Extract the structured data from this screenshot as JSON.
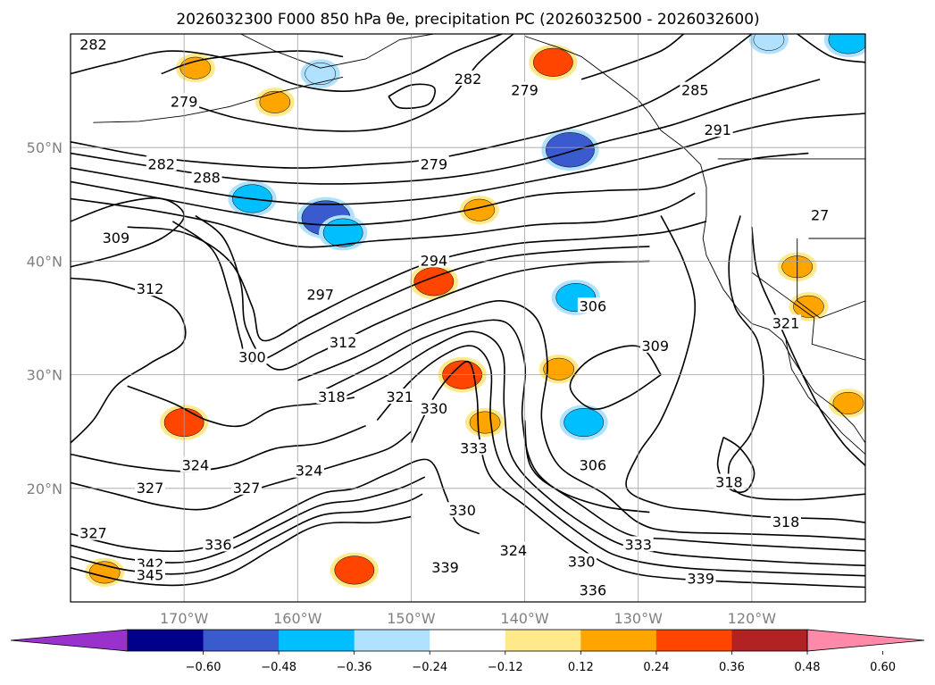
{
  "chart_data": {
    "type": "contour-map",
    "title": "2026032300 F000 850 hPa θe, precipitation PC (2026032500 - 2026032600)",
    "map": {
      "lon_range": [
        -180,
        -110
      ],
      "lat_range": [
        10,
        60
      ],
      "lon_ticks": [
        {
          "value": -170,
          "label": "170°W"
        },
        {
          "value": -160,
          "label": "160°W"
        },
        {
          "value": -150,
          "label": "150°W"
        },
        {
          "value": -140,
          "label": "140°W"
        },
        {
          "value": -130,
          "label": "130°W"
        },
        {
          "value": -120,
          "label": "120°W"
        }
      ],
      "lat_ticks": [
        {
          "value": 50,
          "label": "50°N"
        },
        {
          "value": 40,
          "label": "40°N"
        },
        {
          "value": 30,
          "label": "30°N"
        },
        {
          "value": 20,
          "label": "20°N"
        }
      ],
      "grid": true
    },
    "colorbar": {
      "ticks": [
        "−0.60",
        "−0.48",
        "−0.36",
        "−0.24",
        "−0.12",
        "0.12",
        "0.24",
        "0.36",
        "0.48",
        "0.60"
      ],
      "colors": [
        "#9932cc",
        "#00008b",
        "#3a5bcd",
        "#00bfff",
        "#b0e2ff",
        "#ffffff",
        "#ffe98a",
        "#ffa500",
        "#ff4500",
        "#b22222",
        "#ff89a8"
      ],
      "extend": "both"
    },
    "theta_e_contours": {
      "unit": "K",
      "contour_labels": [
        {
          "text": "282",
          "lon": -178,
          "lat": 59
        },
        {
          "text": "279",
          "lon": -170,
          "lat": 54
        },
        {
          "text": "282",
          "lon": -145,
          "lat": 56
        },
        {
          "text": "279",
          "lon": -140,
          "lat": 55
        },
        {
          "text": "279",
          "lon": -148,
          "lat": 48.5
        },
        {
          "text": "282",
          "lon": -172,
          "lat": 48.5
        },
        {
          "text": "288",
          "lon": -168,
          "lat": 47.3
        },
        {
          "text": "285",
          "lon": -125,
          "lat": 55
        },
        {
          "text": "291",
          "lon": -123,
          "lat": 51.5
        },
        {
          "text": "309",
          "lon": -176,
          "lat": 42
        },
        {
          "text": "294",
          "lon": -148,
          "lat": 40
        },
        {
          "text": "312",
          "lon": -173,
          "lat": 37.5
        },
        {
          "text": "297",
          "lon": -158,
          "lat": 37
        },
        {
          "text": "306",
          "lon": -134,
          "lat": 36
        },
        {
          "text": "309",
          "lon": -128.5,
          "lat": 32.5
        },
        {
          "text": "312",
          "lon": -156,
          "lat": 32.8
        },
        {
          "text": "300",
          "lon": -164,
          "lat": 31.5
        },
        {
          "text": "318",
          "lon": -157,
          "lat": 28
        },
        {
          "text": "321",
          "lon": -151,
          "lat": 28
        },
        {
          "text": "330",
          "lon": -148,
          "lat": 27
        },
        {
          "text": "333",
          "lon": -144.5,
          "lat": 23.5
        },
        {
          "text": "306",
          "lon": -134,
          "lat": 22
        },
        {
          "text": "318",
          "lon": -122,
          "lat": 20.5
        },
        {
          "text": "318",
          "lon": -117,
          "lat": 17
        },
        {
          "text": "324",
          "lon": -169,
          "lat": 22
        },
        {
          "text": "327",
          "lon": -173,
          "lat": 20
        },
        {
          "text": "327",
          "lon": -164.5,
          "lat": 20
        },
        {
          "text": "324",
          "lon": -159,
          "lat": 21.5
        },
        {
          "text": "327",
          "lon": -178,
          "lat": 16
        },
        {
          "text": "336",
          "lon": -167,
          "lat": 15
        },
        {
          "text": "342",
          "lon": -173,
          "lat": 13.3
        },
        {
          "text": "345",
          "lon": -173,
          "lat": 12.3
        },
        {
          "text": "330",
          "lon": -145.5,
          "lat": 18
        },
        {
          "text": "324",
          "lon": -141,
          "lat": 14.5
        },
        {
          "text": "339",
          "lon": -147,
          "lat": 13
        },
        {
          "text": "330",
          "lon": -135,
          "lat": 13.5
        },
        {
          "text": "333",
          "lon": -130,
          "lat": 15
        },
        {
          "text": "336",
          "lon": -134,
          "lat": 11
        },
        {
          "text": "339",
          "lon": -124.5,
          "lat": 12
        },
        {
          "text": "321",
          "lon": -117,
          "lat": 34.5
        },
        {
          "text": "27",
          "lon": -114,
          "lat": 44
        }
      ]
    },
    "precip_pc_areas": [
      {
        "lon": -164,
        "lat": 45.5,
        "value": -0.36
      },
      {
        "lon": -157.5,
        "lat": 43.8,
        "value": -0.48
      },
      {
        "lon": -156,
        "lat": 42.5,
        "value": -0.36
      },
      {
        "lon": -136,
        "lat": 49.8,
        "value": -0.48
      },
      {
        "lon": -135.5,
        "lat": 36.8,
        "value": -0.36
      },
      {
        "lon": -134.8,
        "lat": 25.8,
        "value": -0.36
      },
      {
        "lon": -158,
        "lat": 56.5,
        "value": -0.24
      },
      {
        "lon": -111.5,
        "lat": 59.5,
        "value": -0.36
      },
      {
        "lon": -118.5,
        "lat": 59.5,
        "value": -0.24
      },
      {
        "lon": -148,
        "lat": 38.2,
        "value": 0.36
      },
      {
        "lon": -145.5,
        "lat": 30,
        "value": 0.36
      },
      {
        "lon": -144,
        "lat": 44.5,
        "value": 0.24
      },
      {
        "lon": -170,
        "lat": 25.8,
        "value": 0.36
      },
      {
        "lon": -143.5,
        "lat": 25.8,
        "value": 0.24
      },
      {
        "lon": -155,
        "lat": 12.8,
        "value": 0.36
      },
      {
        "lon": -177,
        "lat": 12.6,
        "value": 0.24
      },
      {
        "lon": -137.5,
        "lat": 57.5,
        "value": 0.36
      },
      {
        "lon": -137,
        "lat": 30.5,
        "value": 0.24
      },
      {
        "lon": -169,
        "lat": 57,
        "value": 0.24
      },
      {
        "lon": -162,
        "lat": 54,
        "value": 0.24
      },
      {
        "lon": -111.5,
        "lat": 27.5,
        "value": 0.24
      },
      {
        "lon": -116,
        "lat": 39.5,
        "value": 0.24
      },
      {
        "lon": -115,
        "lat": 36,
        "value": 0.24
      }
    ]
  }
}
